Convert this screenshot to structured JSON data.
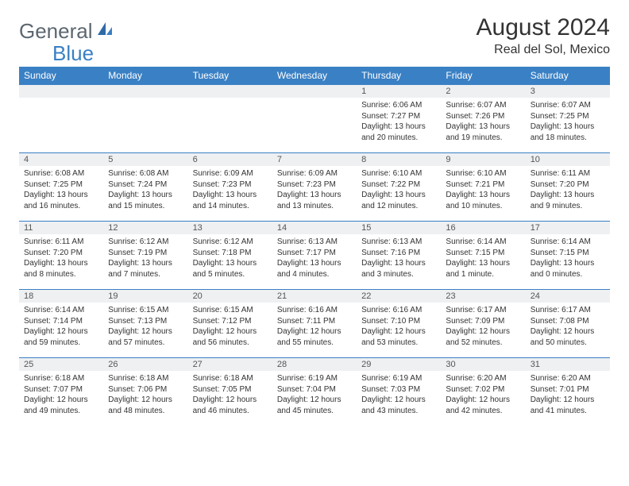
{
  "logo": {
    "text1": "General",
    "text2": "Blue"
  },
  "title": "August 2024",
  "location": "Real del Sol, Mexico",
  "colors": {
    "header_bg": "#3a80c4",
    "header_text": "#ffffff",
    "daynum_bg": "#eef0f2",
    "row_divider": "#3a80c4",
    "body_text": "#333333",
    "logo_gray": "#5c6770",
    "logo_blue": "#3a80c4"
  },
  "typography": {
    "title_fontsize": 30,
    "location_fontsize": 16,
    "weekday_fontsize": 12,
    "daynum_fontsize": 11,
    "cell_fontsize": 10
  },
  "weekdays": [
    "Sunday",
    "Monday",
    "Tuesday",
    "Wednesday",
    "Thursday",
    "Friday",
    "Saturday"
  ],
  "weeks": [
    [
      null,
      null,
      null,
      null,
      {
        "num": "1",
        "sunrise": "Sunrise: 6:06 AM",
        "sunset": "Sunset: 7:27 PM",
        "daylight": "Daylight: 13 hours and 20 minutes."
      },
      {
        "num": "2",
        "sunrise": "Sunrise: 6:07 AM",
        "sunset": "Sunset: 7:26 PM",
        "daylight": "Daylight: 13 hours and 19 minutes."
      },
      {
        "num": "3",
        "sunrise": "Sunrise: 6:07 AM",
        "sunset": "Sunset: 7:25 PM",
        "daylight": "Daylight: 13 hours and 18 minutes."
      }
    ],
    [
      {
        "num": "4",
        "sunrise": "Sunrise: 6:08 AM",
        "sunset": "Sunset: 7:25 PM",
        "daylight": "Daylight: 13 hours and 16 minutes."
      },
      {
        "num": "5",
        "sunrise": "Sunrise: 6:08 AM",
        "sunset": "Sunset: 7:24 PM",
        "daylight": "Daylight: 13 hours and 15 minutes."
      },
      {
        "num": "6",
        "sunrise": "Sunrise: 6:09 AM",
        "sunset": "Sunset: 7:23 PM",
        "daylight": "Daylight: 13 hours and 14 minutes."
      },
      {
        "num": "7",
        "sunrise": "Sunrise: 6:09 AM",
        "sunset": "Sunset: 7:23 PM",
        "daylight": "Daylight: 13 hours and 13 minutes."
      },
      {
        "num": "8",
        "sunrise": "Sunrise: 6:10 AM",
        "sunset": "Sunset: 7:22 PM",
        "daylight": "Daylight: 13 hours and 12 minutes."
      },
      {
        "num": "9",
        "sunrise": "Sunrise: 6:10 AM",
        "sunset": "Sunset: 7:21 PM",
        "daylight": "Daylight: 13 hours and 10 minutes."
      },
      {
        "num": "10",
        "sunrise": "Sunrise: 6:11 AM",
        "sunset": "Sunset: 7:20 PM",
        "daylight": "Daylight: 13 hours and 9 minutes."
      }
    ],
    [
      {
        "num": "11",
        "sunrise": "Sunrise: 6:11 AM",
        "sunset": "Sunset: 7:20 PM",
        "daylight": "Daylight: 13 hours and 8 minutes."
      },
      {
        "num": "12",
        "sunrise": "Sunrise: 6:12 AM",
        "sunset": "Sunset: 7:19 PM",
        "daylight": "Daylight: 13 hours and 7 minutes."
      },
      {
        "num": "13",
        "sunrise": "Sunrise: 6:12 AM",
        "sunset": "Sunset: 7:18 PM",
        "daylight": "Daylight: 13 hours and 5 minutes."
      },
      {
        "num": "14",
        "sunrise": "Sunrise: 6:13 AM",
        "sunset": "Sunset: 7:17 PM",
        "daylight": "Daylight: 13 hours and 4 minutes."
      },
      {
        "num": "15",
        "sunrise": "Sunrise: 6:13 AM",
        "sunset": "Sunset: 7:16 PM",
        "daylight": "Daylight: 13 hours and 3 minutes."
      },
      {
        "num": "16",
        "sunrise": "Sunrise: 6:14 AM",
        "sunset": "Sunset: 7:15 PM",
        "daylight": "Daylight: 13 hours and 1 minute."
      },
      {
        "num": "17",
        "sunrise": "Sunrise: 6:14 AM",
        "sunset": "Sunset: 7:15 PM",
        "daylight": "Daylight: 13 hours and 0 minutes."
      }
    ],
    [
      {
        "num": "18",
        "sunrise": "Sunrise: 6:14 AM",
        "sunset": "Sunset: 7:14 PM",
        "daylight": "Daylight: 12 hours and 59 minutes."
      },
      {
        "num": "19",
        "sunrise": "Sunrise: 6:15 AM",
        "sunset": "Sunset: 7:13 PM",
        "daylight": "Daylight: 12 hours and 57 minutes."
      },
      {
        "num": "20",
        "sunrise": "Sunrise: 6:15 AM",
        "sunset": "Sunset: 7:12 PM",
        "daylight": "Daylight: 12 hours and 56 minutes."
      },
      {
        "num": "21",
        "sunrise": "Sunrise: 6:16 AM",
        "sunset": "Sunset: 7:11 PM",
        "daylight": "Daylight: 12 hours and 55 minutes."
      },
      {
        "num": "22",
        "sunrise": "Sunrise: 6:16 AM",
        "sunset": "Sunset: 7:10 PM",
        "daylight": "Daylight: 12 hours and 53 minutes."
      },
      {
        "num": "23",
        "sunrise": "Sunrise: 6:17 AM",
        "sunset": "Sunset: 7:09 PM",
        "daylight": "Daylight: 12 hours and 52 minutes."
      },
      {
        "num": "24",
        "sunrise": "Sunrise: 6:17 AM",
        "sunset": "Sunset: 7:08 PM",
        "daylight": "Daylight: 12 hours and 50 minutes."
      }
    ],
    [
      {
        "num": "25",
        "sunrise": "Sunrise: 6:18 AM",
        "sunset": "Sunset: 7:07 PM",
        "daylight": "Daylight: 12 hours and 49 minutes."
      },
      {
        "num": "26",
        "sunrise": "Sunrise: 6:18 AM",
        "sunset": "Sunset: 7:06 PM",
        "daylight": "Daylight: 12 hours and 48 minutes."
      },
      {
        "num": "27",
        "sunrise": "Sunrise: 6:18 AM",
        "sunset": "Sunset: 7:05 PM",
        "daylight": "Daylight: 12 hours and 46 minutes."
      },
      {
        "num": "28",
        "sunrise": "Sunrise: 6:19 AM",
        "sunset": "Sunset: 7:04 PM",
        "daylight": "Daylight: 12 hours and 45 minutes."
      },
      {
        "num": "29",
        "sunrise": "Sunrise: 6:19 AM",
        "sunset": "Sunset: 7:03 PM",
        "daylight": "Daylight: 12 hours and 43 minutes."
      },
      {
        "num": "30",
        "sunrise": "Sunrise: 6:20 AM",
        "sunset": "Sunset: 7:02 PM",
        "daylight": "Daylight: 12 hours and 42 minutes."
      },
      {
        "num": "31",
        "sunrise": "Sunrise: 6:20 AM",
        "sunset": "Sunset: 7:01 PM",
        "daylight": "Daylight: 12 hours and 41 minutes."
      }
    ]
  ]
}
